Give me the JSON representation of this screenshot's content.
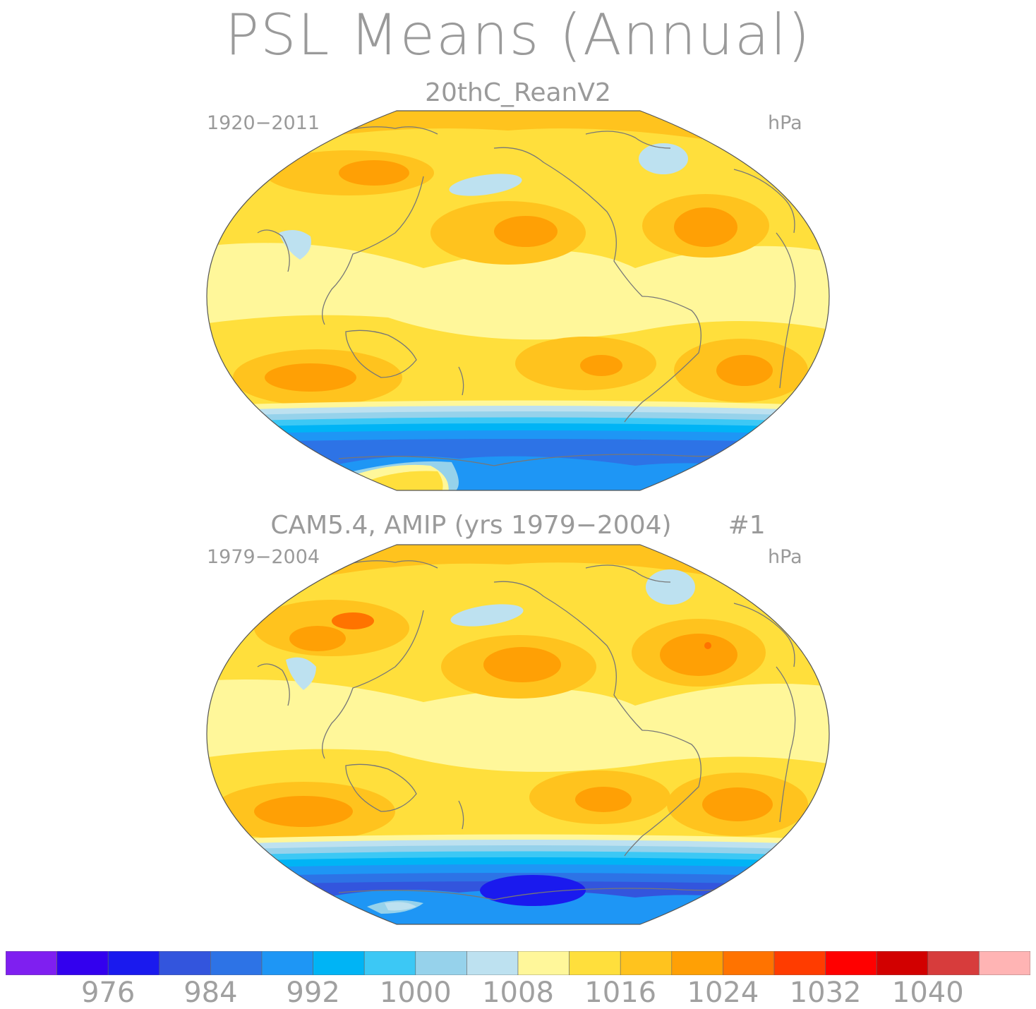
{
  "title": "PSL Means (Annual)",
  "panels": [
    {
      "name": "20thC_ReanV2",
      "years": "1920−2011",
      "units": "hPa",
      "run": ""
    },
    {
      "name": "CAM5.4, AMIP (yrs 1979−2004)",
      "years": "1979−2004",
      "units": "hPa",
      "run": "#1"
    }
  ],
  "colorbar": {
    "colors": [
      "#7f1ff0",
      "#3300ee",
      "#1a1aee",
      "#3355dd",
      "#2d73e6",
      "#1e96f5",
      "#00b4f5",
      "#3cc8f5",
      "#96d2eb",
      "#bde1f0",
      "#fff79a",
      "#ffdf3c",
      "#ffc31e",
      "#ffa005",
      "#ff7300",
      "#ff3c00",
      "#ff0000",
      "#d20000",
      "#d73c3c",
      "#ffb4b4"
    ],
    "tick_labels": [
      "976",
      "984",
      "992",
      "1000",
      "1008",
      "1016",
      "1024",
      "1032",
      "1040"
    ]
  }
}
